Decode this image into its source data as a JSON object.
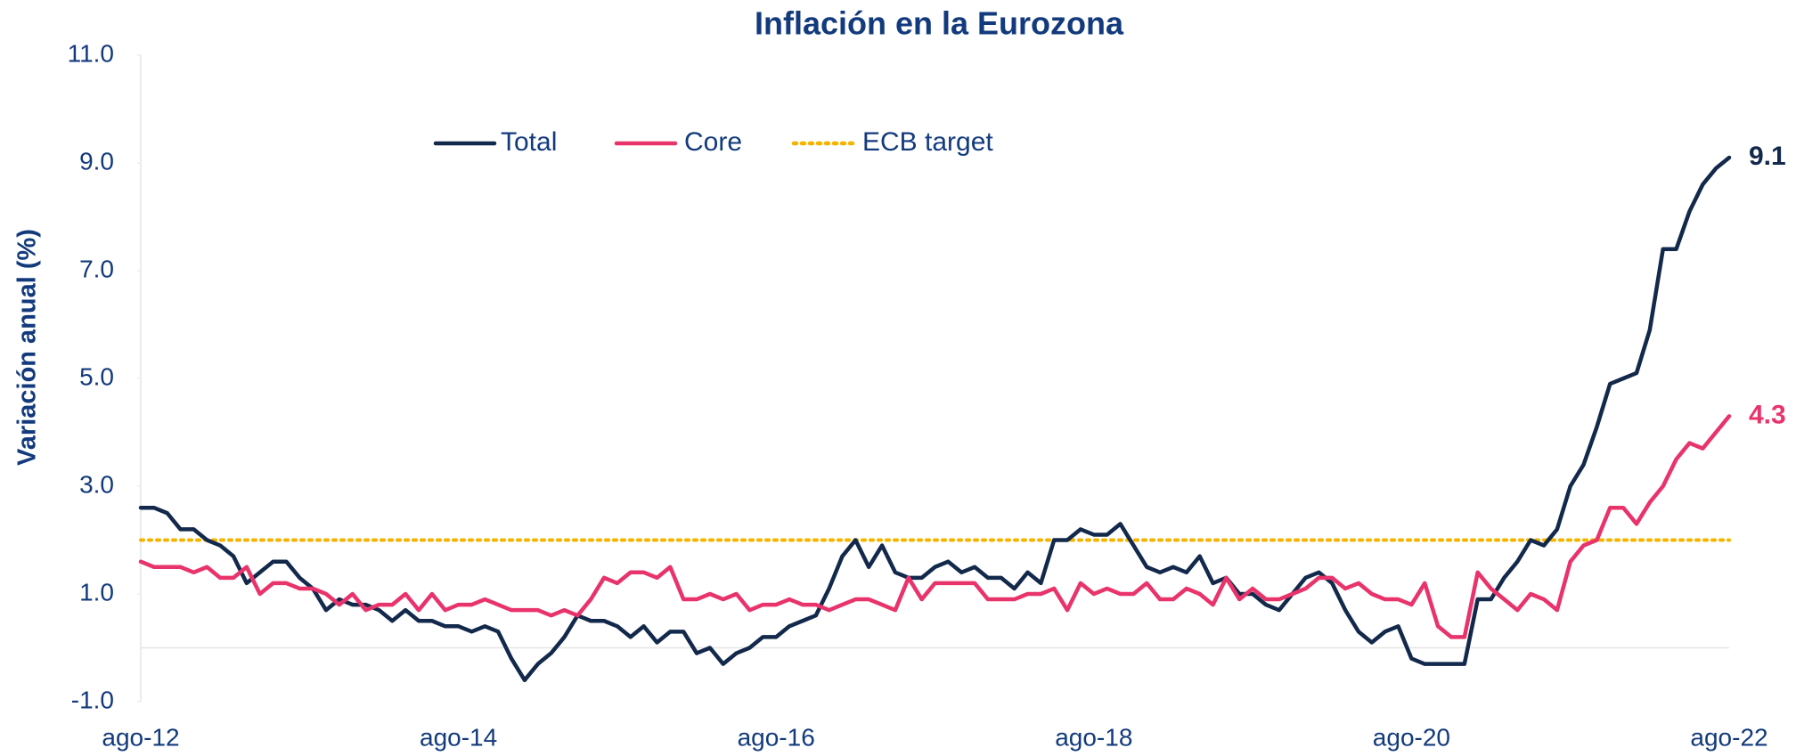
{
  "chart_data": {
    "type": "line",
    "title": "Inflación en la Eurozona",
    "y_label": "Variación anual (%)",
    "categories": [
      "ago-12",
      null,
      null,
      null,
      null,
      null,
      null,
      null,
      null,
      null,
      null,
      null,
      null,
      null,
      null,
      null,
      null,
      null,
      null,
      null,
      null,
      null,
      null,
      null,
      "ago-14",
      null,
      null,
      null,
      null,
      null,
      null,
      null,
      null,
      null,
      null,
      null,
      null,
      null,
      null,
      null,
      null,
      null,
      null,
      null,
      null,
      null,
      null,
      null,
      "ago-16",
      null,
      null,
      null,
      null,
      null,
      null,
      null,
      null,
      null,
      null,
      null,
      null,
      null,
      null,
      null,
      null,
      null,
      null,
      null,
      null,
      null,
      null,
      null,
      "ago-18",
      null,
      null,
      null,
      null,
      null,
      null,
      null,
      null,
      null,
      null,
      null,
      null,
      null,
      null,
      null,
      null,
      null,
      null,
      null,
      null,
      null,
      null,
      null,
      "ago-20",
      null,
      null,
      null,
      null,
      null,
      null,
      null,
      null,
      null,
      null,
      null,
      null,
      null,
      null,
      null,
      null,
      null,
      null,
      null,
      null,
      null,
      null,
      null,
      "ago-22"
    ],
    "series": [
      {
        "name": "Total",
        "color": "#13294b",
        "values": [
          2.6,
          2.6,
          2.5,
          2.2,
          2.2,
          2.0,
          1.9,
          1.7,
          1.2,
          1.4,
          1.6,
          1.6,
          1.3,
          1.1,
          0.7,
          0.9,
          0.8,
          0.8,
          0.7,
          0.5,
          0.7,
          0.5,
          0.5,
          0.4,
          0.4,
          0.3,
          0.4,
          0.3,
          -0.2,
          -0.6,
          -0.3,
          -0.1,
          0.2,
          0.6,
          0.5,
          0.5,
          0.4,
          0.2,
          0.4,
          0.1,
          0.3,
          0.3,
          -0.1,
          0.0,
          -0.3,
          -0.1,
          0.0,
          0.2,
          0.2,
          0.4,
          0.5,
          0.6,
          1.1,
          1.7,
          2.0,
          1.5,
          1.9,
          1.4,
          1.3,
          1.3,
          1.5,
          1.6,
          1.4,
          1.5,
          1.3,
          1.3,
          1.1,
          1.4,
          1.2,
          2.0,
          2.0,
          2.2,
          2.1,
          2.1,
          2.3,
          1.9,
          1.5,
          1.4,
          1.5,
          1.4,
          1.7,
          1.2,
          1.3,
          1.0,
          1.0,
          0.8,
          0.7,
          1.0,
          1.3,
          1.4,
          1.2,
          0.7,
          0.3,
          0.1,
          0.3,
          0.4,
          -0.2,
          -0.3,
          -0.3,
          -0.3,
          -0.3,
          0.9,
          0.9,
          1.3,
          1.6,
          2.0,
          1.9,
          2.2,
          3.0,
          3.4,
          4.1,
          4.9,
          5.0,
          5.1,
          5.9,
          7.4,
          7.4,
          8.1,
          8.6,
          8.9,
          9.1
        ]
      },
      {
        "name": "Core",
        "color": "#e8336b",
        "values": [
          1.6,
          1.5,
          1.5,
          1.5,
          1.4,
          1.5,
          1.3,
          1.3,
          1.5,
          1.0,
          1.2,
          1.2,
          1.1,
          1.1,
          1.0,
          0.8,
          1.0,
          0.7,
          0.8,
          0.8,
          1.0,
          0.7,
          1.0,
          0.7,
          0.8,
          0.8,
          0.9,
          0.8,
          0.7,
          0.7,
          0.7,
          0.6,
          0.7,
          0.6,
          0.9,
          1.3,
          1.2,
          1.4,
          1.4,
          1.3,
          1.5,
          0.9,
          0.9,
          1.0,
          0.9,
          1.0,
          0.7,
          0.8,
          0.8,
          0.9,
          0.8,
          0.8,
          0.7,
          0.8,
          0.9,
          0.9,
          0.8,
          0.7,
          1.3,
          0.9,
          1.2,
          1.2,
          1.2,
          1.2,
          0.9,
          0.9,
          0.9,
          1.0,
          1.0,
          1.1,
          0.7,
          1.2,
          1.0,
          1.1,
          1.0,
          1.0,
          1.2,
          0.9,
          0.9,
          1.1,
          1.0,
          0.8,
          1.3,
          0.9,
          1.1,
          0.9,
          0.9,
          1.0,
          1.1,
          1.3,
          1.3,
          1.1,
          1.2,
          1.0,
          0.9,
          0.9,
          0.8,
          1.2,
          0.4,
          0.2,
          0.2,
          1.4,
          1.1,
          0.9,
          0.7,
          1.0,
          0.9,
          0.7,
          1.6,
          1.9,
          2.0,
          2.6,
          2.6,
          2.3,
          2.7,
          3.0,
          3.5,
          3.8,
          3.7,
          4.0,
          4.3
        ]
      }
    ],
    "target": {
      "name": "ECB target",
      "color": "#f5b400",
      "value": 2
    },
    "ylim": [
      -1,
      11
    ],
    "yticks": [
      {
        "value": -1,
        "label": "-1.0"
      },
      {
        "value": 1,
        "label": "1.0"
      },
      {
        "value": 3,
        "label": "3.0"
      },
      {
        "value": 5,
        "label": "5.0"
      },
      {
        "value": 7,
        "label": "7.0"
      },
      {
        "value": 9,
        "label": "9.0"
      },
      {
        "value": 11,
        "label": "11.0"
      }
    ],
    "grid": false,
    "legend": "top"
  }
}
